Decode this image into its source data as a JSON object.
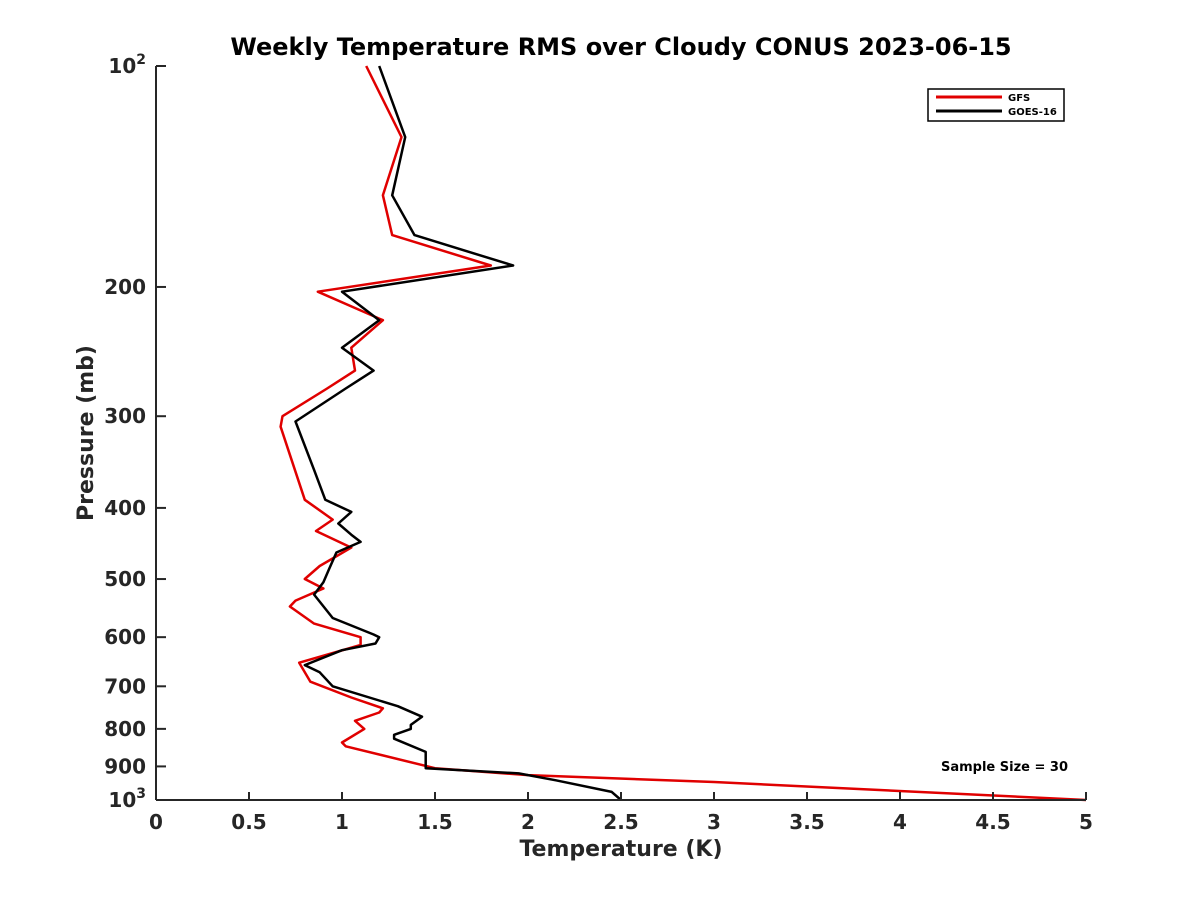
{
  "chart_data": {
    "type": "line",
    "title": "Weekly Temperature RMS over Cloudy CONUS 2023-06-15",
    "xlabel": "Temperature (K)",
    "ylabel": "Pressure (mb)",
    "xlim": [
      0,
      5
    ],
    "ylim": [
      100,
      1000
    ],
    "y_scale": "log",
    "y_reversed": true,
    "grid": false,
    "legend_position": "top-right",
    "x_ticks": [
      0,
      0.5,
      1,
      1.5,
      2,
      2.5,
      3,
      3.5,
      4,
      4.5,
      5
    ],
    "x_tick_labels": [
      "0",
      "0.5",
      "1",
      "1.5",
      "2",
      "2.5",
      "3",
      "3.5",
      "4",
      "4.5",
      "5"
    ],
    "y_ticks": [
      100,
      200,
      300,
      400,
      500,
      600,
      700,
      800,
      900,
      1000
    ],
    "y_tick_labels": [
      {
        "base": "10",
        "exp": "2"
      },
      {
        "base": "200",
        "exp": ""
      },
      {
        "base": "300",
        "exp": ""
      },
      {
        "base": "400",
        "exp": ""
      },
      {
        "base": "500",
        "exp": ""
      },
      {
        "base": "600",
        "exp": ""
      },
      {
        "base": "700",
        "exp": ""
      },
      {
        "base": "800",
        "exp": ""
      },
      {
        "base": "900",
        "exp": ""
      },
      {
        "base": "10",
        "exp": "3"
      }
    ],
    "annotation": "Sample Size = 30",
    "series": [
      {
        "name": "GFS",
        "color": "#e00000",
        "points": [
          [
            1.13,
            100
          ],
          [
            1.32,
            125
          ],
          [
            1.22,
            150
          ],
          [
            1.27,
            170
          ],
          [
            1.8,
            187
          ],
          [
            0.87,
            203
          ],
          [
            1.22,
            222
          ],
          [
            1.05,
            242
          ],
          [
            1.07,
            260
          ],
          [
            0.92,
            275
          ],
          [
            0.68,
            300
          ],
          [
            0.67,
            310
          ],
          [
            0.8,
            390
          ],
          [
            0.95,
            415
          ],
          [
            0.86,
            430
          ],
          [
            1.05,
            453
          ],
          [
            0.88,
            480
          ],
          [
            0.8,
            500
          ],
          [
            0.9,
            515
          ],
          [
            0.75,
            535
          ],
          [
            0.72,
            545
          ],
          [
            0.85,
            575
          ],
          [
            1.1,
            600
          ],
          [
            1.1,
            615
          ],
          [
            0.77,
            650
          ],
          [
            0.83,
            690
          ],
          [
            1.05,
            725
          ],
          [
            1.22,
            750
          ],
          [
            1.2,
            760
          ],
          [
            1.07,
            780
          ],
          [
            1.12,
            800
          ],
          [
            1.0,
            835
          ],
          [
            1.02,
            845
          ],
          [
            1.5,
            905
          ],
          [
            2.0,
            925
          ],
          [
            3.0,
            945
          ],
          [
            5.0,
            1000
          ]
        ]
      },
      {
        "name": "GOES-16",
        "color": "#000000",
        "points": [
          [
            1.2,
            100
          ],
          [
            1.34,
            125
          ],
          [
            1.27,
            150
          ],
          [
            1.39,
            170
          ],
          [
            1.92,
            187
          ],
          [
            1.0,
            203
          ],
          [
            1.2,
            222
          ],
          [
            1.0,
            242
          ],
          [
            1.17,
            260
          ],
          [
            1.02,
            275
          ],
          [
            0.75,
            305
          ],
          [
            0.85,
            355
          ],
          [
            0.91,
            390
          ],
          [
            1.05,
            405
          ],
          [
            0.98,
            420
          ],
          [
            1.05,
            435
          ],
          [
            1.1,
            445
          ],
          [
            0.97,
            460
          ],
          [
            0.93,
            485
          ],
          [
            0.9,
            505
          ],
          [
            0.85,
            525
          ],
          [
            0.95,
            565
          ],
          [
            1.17,
            595
          ],
          [
            1.2,
            600
          ],
          [
            1.18,
            612
          ],
          [
            1.0,
            625
          ],
          [
            0.8,
            655
          ],
          [
            0.88,
            670
          ],
          [
            0.95,
            700
          ],
          [
            1.3,
            745
          ],
          [
            1.43,
            770
          ],
          [
            1.37,
            790
          ],
          [
            1.37,
            800
          ],
          [
            1.28,
            815
          ],
          [
            1.28,
            825
          ],
          [
            1.45,
            860
          ],
          [
            1.45,
            885
          ],
          [
            1.45,
            905
          ],
          [
            1.95,
            920
          ],
          [
            2.15,
            940
          ],
          [
            2.45,
            975
          ],
          [
            2.5,
            1000
          ]
        ]
      }
    ]
  }
}
